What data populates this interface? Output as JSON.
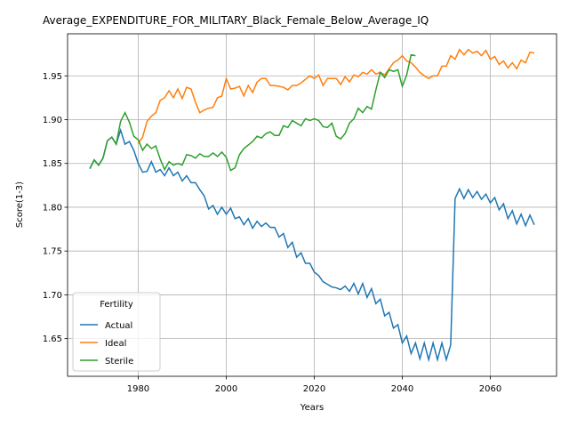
{
  "chart_data": {
    "type": "line",
    "title": "Average_EXPENDITURE_FOR_MILITARY_Black_Female_Below_Average_IQ",
    "xlabel": "Years",
    "ylabel": "Score(1-3)",
    "x": [
      1969,
      1970,
      1971,
      1972,
      1973,
      1974,
      1975,
      1976,
      1977,
      1978,
      1979,
      1980,
      1981,
      1982,
      1983,
      1984,
      1985,
      1986,
      1987,
      1988,
      1989,
      1990,
      1991,
      1992,
      1993,
      1994,
      1995,
      1996,
      1997,
      1998,
      1999,
      2000,
      2001,
      2002,
      2003,
      2004,
      2005,
      2006,
      2007,
      2008,
      2009,
      2010,
      2011,
      2012,
      2013,
      2014,
      2015,
      2016,
      2017,
      2018,
      2019,
      2020,
      2021,
      2022,
      2023,
      2024,
      2025,
      2026,
      2027,
      2028,
      2029,
      2030,
      2031,
      2032,
      2033,
      2034,
      2035,
      2036,
      2037,
      2038,
      2039,
      2040,
      2041,
      2042,
      2043,
      2044,
      2045,
      2046,
      2047,
      2048,
      2049,
      2050,
      2051,
      2052,
      2053,
      2054,
      2055,
      2056,
      2057,
      2058,
      2059,
      2060,
      2061,
      2062,
      2063,
      2064,
      2065,
      2066,
      2067,
      2068,
      2069,
      2070
    ],
    "series": [
      {
        "name": "Actual",
        "color": "#1f77b4",
        "values": [
          1.844,
          1.854,
          1.848,
          1.856,
          1.876,
          1.88,
          1.872,
          1.888,
          1.872,
          1.875,
          1.865,
          1.85,
          1.84,
          1.841,
          1.852,
          1.84,
          1.843,
          1.836,
          1.845,
          1.836,
          1.84,
          1.83,
          1.836,
          1.828,
          1.828,
          1.82,
          1.813,
          1.798,
          1.802,
          1.792,
          1.8,
          1.792,
          1.799,
          1.787,
          1.789,
          1.78,
          1.787,
          1.776,
          1.784,
          1.778,
          1.782,
          1.777,
          1.777,
          1.766,
          1.77,
          1.754,
          1.76,
          1.743,
          1.748,
          1.736,
          1.736,
          1.726,
          1.722,
          1.715,
          1.712,
          1.709,
          1.708,
          1.706,
          1.71,
          1.704,
          1.713,
          1.701,
          1.713,
          1.697,
          1.707,
          1.69,
          1.695,
          1.676,
          1.68,
          1.662,
          1.666,
          1.645,
          1.653,
          1.633,
          1.645,
          1.627,
          1.645,
          1.626,
          1.645,
          1.626,
          1.645,
          1.626,
          1.643,
          1.81,
          1.821,
          1.81,
          1.82,
          1.811,
          1.818,
          1.809,
          1.815,
          1.805,
          1.811,
          1.797,
          1.804,
          1.787,
          1.796,
          1.781,
          1.792,
          1.779,
          1.791,
          1.78
        ]
      },
      {
        "name": "Ideal",
        "color": "#ff7f0e",
        "values": [
          null,
          null,
          null,
          null,
          null,
          null,
          null,
          null,
          null,
          null,
          null,
          1.873,
          1.88,
          1.898,
          1.904,
          1.908,
          1.922,
          1.925,
          1.933,
          1.925,
          1.935,
          1.924,
          1.937,
          1.935,
          1.92,
          1.908,
          1.911,
          1.913,
          1.914,
          1.925,
          1.927,
          1.947,
          1.935,
          1.936,
          1.938,
          1.927,
          1.939,
          1.931,
          1.943,
          1.947,
          1.947,
          1.939,
          1.939,
          1.938,
          1.937,
          1.934,
          1.939,
          1.939,
          1.942,
          1.946,
          1.95,
          1.947,
          1.951,
          1.939,
          1.947,
          1.947,
          1.947,
          1.94,
          1.949,
          1.943,
          1.951,
          1.949,
          1.954,
          1.952,
          1.957,
          1.952,
          1.954,
          1.951,
          1.958,
          1.965,
          1.968,
          1.973,
          1.967,
          1.965,
          1.96,
          1.954,
          1.95,
          1.947,
          1.95,
          1.95,
          1.961,
          1.961,
          1.973,
          1.969,
          1.98,
          1.974,
          1.98,
          1.976,
          1.978,
          1.973,
          1.979,
          1.969,
          1.972,
          1.963,
          1.967,
          1.959,
          1.965,
          1.958,
          1.968,
          1.965,
          1.977,
          1.976
        ]
      },
      {
        "name": "Sterile",
        "color": "#2ca02c",
        "values": [
          1.844,
          1.854,
          1.848,
          1.856,
          1.876,
          1.88,
          1.872,
          1.898,
          1.908,
          1.897,
          1.881,
          1.877,
          1.865,
          1.872,
          1.867,
          1.87,
          1.855,
          1.843,
          1.852,
          1.848,
          1.85,
          1.848,
          1.86,
          1.859,
          1.856,
          1.861,
          1.858,
          1.858,
          1.862,
          1.858,
          1.863,
          1.857,
          1.842,
          1.845,
          1.86,
          1.867,
          1.871,
          1.875,
          1.881,
          1.879,
          1.884,
          1.886,
          1.882,
          1.882,
          1.893,
          1.891,
          1.899,
          1.896,
          1.893,
          1.901,
          1.899,
          1.901,
          1.899,
          1.892,
          1.891,
          1.896,
          1.881,
          1.878,
          1.884,
          1.896,
          1.901,
          1.913,
          1.908,
          1.915,
          1.912,
          1.934,
          1.954,
          1.948,
          1.957,
          1.955,
          1.957,
          1.938,
          1.951,
          1.974,
          1.973,
          null,
          null,
          null,
          null,
          null,
          null,
          null,
          null,
          null,
          null,
          null,
          null,
          null,
          null,
          null,
          null,
          null,
          null,
          null,
          null,
          null,
          null,
          null,
          null,
          null,
          null,
          null
        ]
      }
    ],
    "xlim": [
      1963.95,
      2075.05
    ],
    "ylim": [
      1.607,
      1.998
    ],
    "xticks": [
      1980,
      2000,
      2020,
      2040,
      2060
    ],
    "yticks": [
      1.65,
      {
        "value": 1.7,
        "label": "1.70"
      },
      1.75,
      {
        "value": 1.8,
        "label": "1.80"
      },
      1.85,
      {
        "value": 1.9,
        "label": "1.90"
      },
      1.95
    ],
    "grid": true,
    "legend": {
      "title": "Fertility",
      "loc": "lower left"
    }
  }
}
